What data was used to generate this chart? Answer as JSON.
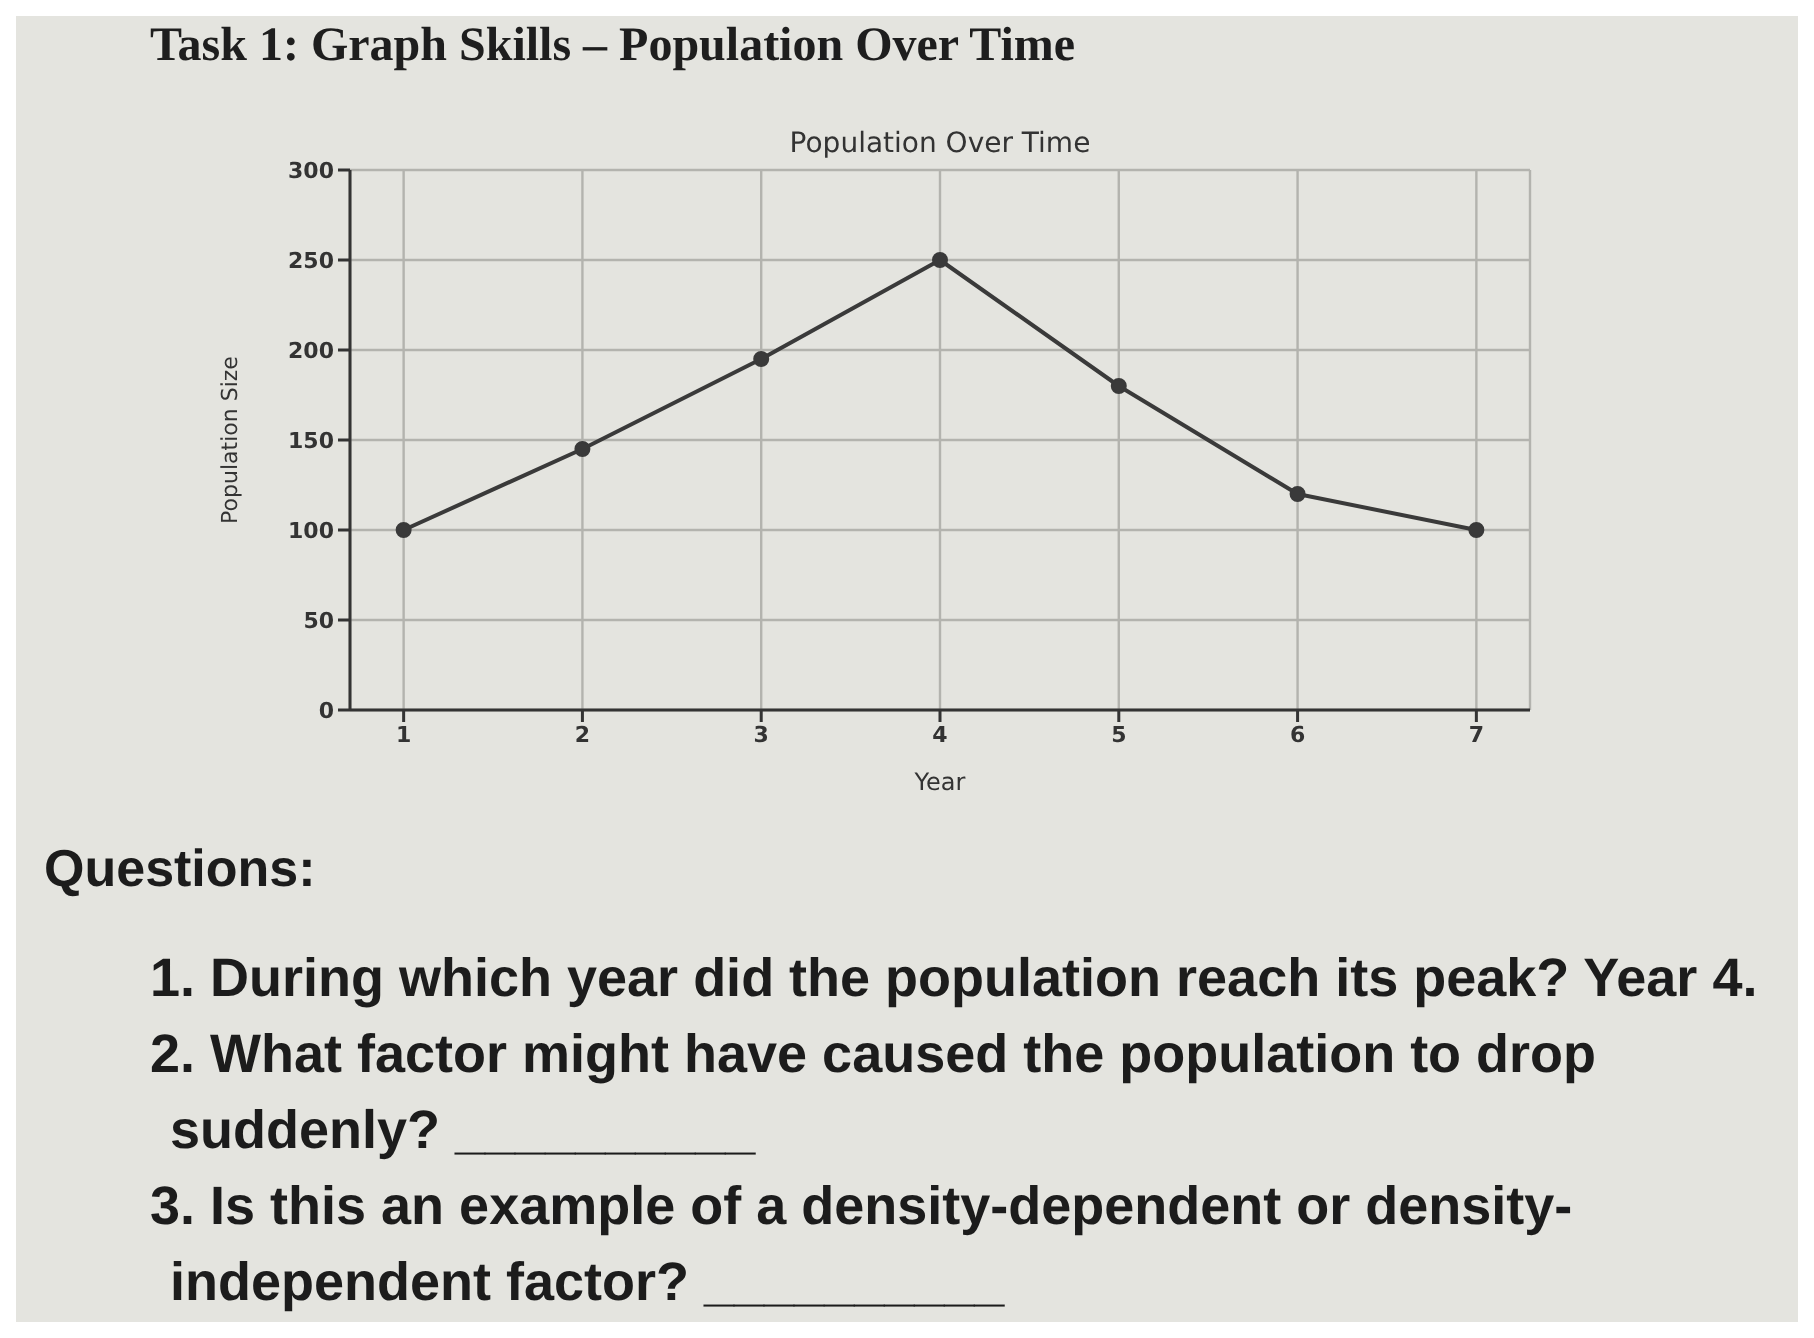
{
  "chart_data": {
    "type": "line",
    "title": "Task 1: Graph Skills – Population Over Time",
    "subtitle": "Population Over Time",
    "xlabel": "Year",
    "ylabel": "Population Size",
    "x": [
      1,
      2,
      3,
      4,
      5,
      6,
      7
    ],
    "values": [
      100,
      145,
      195,
      250,
      180,
      120,
      100
    ],
    "color": "#3a3a3a",
    "xlim": [
      0.7,
      7.3
    ],
    "xticks": [
      1,
      2,
      3,
      4,
      5,
      6,
      7
    ],
    "ylim": [
      0,
      300
    ],
    "yticks": [
      0,
      50,
      100,
      150,
      200,
      250,
      300
    ],
    "grid": true,
    "marker": "circle",
    "line_style": "solid",
    "annotations": [
      "Questions:",
      "1. During which year did the population reach its peak? Year 4.",
      "2. What factor might have caused the population to drop suddenly? __________",
      "3. Is this an example of a density-dependent or density-independent factor? __________"
    ]
  }
}
